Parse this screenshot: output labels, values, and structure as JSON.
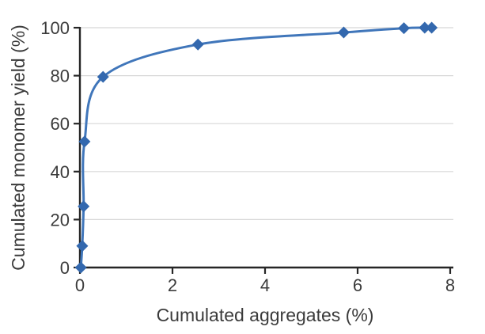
{
  "chart_data": {
    "type": "line",
    "title": "",
    "xlabel": "Cumulated aggregates (%)",
    "ylabel": "Cumulated monomer yield (%)",
    "xlim": [
      0,
      8
    ],
    "ylim": [
      0,
      100
    ],
    "x_ticks": [
      0,
      2,
      4,
      6,
      8
    ],
    "y_ticks": [
      0,
      20,
      40,
      60,
      80,
      100
    ],
    "grid": "horizontal",
    "legend": false,
    "series": [
      {
        "name": "Cumulated monomer yield",
        "marker": "diamond",
        "smooth": true,
        "points": [
          [
            0.02,
            0
          ],
          [
            0.05,
            9
          ],
          [
            0.08,
            25.5
          ],
          [
            0.1,
            52.5
          ],
          [
            0.5,
            79.5
          ],
          [
            2.55,
            93
          ],
          [
            5.7,
            98
          ],
          [
            7.0,
            99.8
          ],
          [
            7.45,
            100
          ],
          [
            7.6,
            100
          ]
        ]
      }
    ],
    "colors": {
      "line": "#4076ba",
      "marker": "#3368ae",
      "axis": "#262626",
      "grid": "#d8d8d8",
      "text": "#3b3b3b"
    }
  }
}
